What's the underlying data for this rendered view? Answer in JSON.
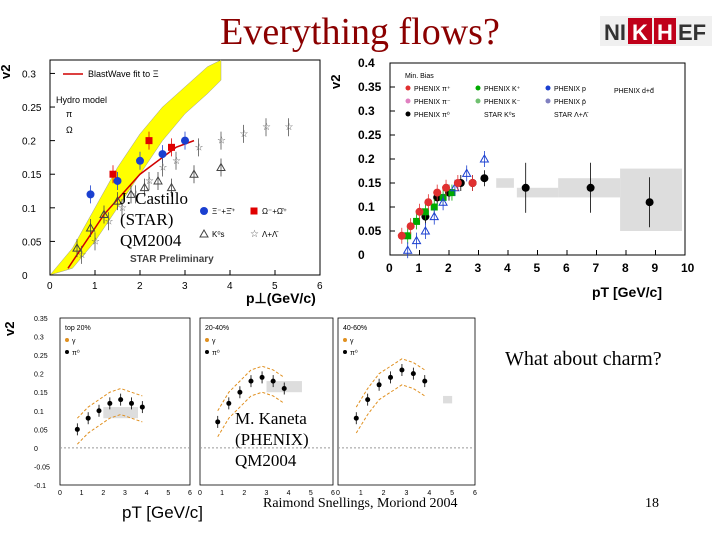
{
  "slide": {
    "title": "Everything flows?",
    "logo_text": {
      "part1": "NI",
      "part2": "K",
      "part3": "H",
      "part4": "EF"
    },
    "question": "What about charm?",
    "footer": "Raimond Snellings, Moriond 2004",
    "page_number": "18",
    "credit_star": [
      "J. Castillo",
      "(STAR)",
      "QM2004"
    ],
    "credit_phenix": [
      "M. Kaneta",
      "(PHENIX)",
      "QM2004"
    ]
  },
  "colors": {
    "title": "#8b0000",
    "hydro_band": "#ffff00",
    "blastwave": "#d00000",
    "phenix_green": "#00aa00",
    "phenix_pi0": "#000000",
    "gamma": "#e09020"
  },
  "chart_data": [
    {
      "type": "scatter",
      "panel": "STAR",
      "ylabel": "v2",
      "xlabel": "p⊥(GeV/c)",
      "xlim": [
        0,
        6
      ],
      "ylim": [
        0,
        0.32
      ],
      "x_ticks": [
        "0",
        "1",
        "2",
        "3",
        "4",
        "5",
        "6"
      ],
      "y_ticks": [
        "0",
        "0.05",
        "0.1",
        "0.15",
        "0.2",
        "0.25",
        "0.3"
      ],
      "legend": [
        "BlastWave fit to Ξ",
        "Hydro model",
        "π",
        "Ω",
        "Ξ⁻+Ξ̄⁺",
        "Ω⁻+Ω̄⁺",
        "K⁰s",
        "Λ+Λ̄"
      ],
      "annotation": "STAR Preliminary",
      "series": [
        {
          "name": "Ξ⁻+Ξ̄⁺",
          "x": [
            0.9,
            1.5,
            2.0,
            2.5,
            3.0
          ],
          "y": [
            0.12,
            0.14,
            0.17,
            0.18,
            0.2
          ]
        },
        {
          "name": "Ω⁻+Ω̄⁺",
          "x": [
            1.4,
            2.2,
            2.7
          ],
          "y": [
            0.15,
            0.2,
            0.19
          ]
        },
        {
          "name": "K⁰s",
          "x": [
            0.6,
            0.9,
            1.2,
            1.5,
            1.8,
            2.1,
            2.4,
            2.7,
            3.2,
            3.8
          ],
          "y": [
            0.04,
            0.07,
            0.09,
            0.11,
            0.12,
            0.13,
            0.14,
            0.13,
            0.15,
            0.16
          ]
        },
        {
          "name": "Λ+Λ̄",
          "x": [
            0.7,
            1.0,
            1.3,
            1.6,
            1.9,
            2.2,
            2.5,
            2.8,
            3.3,
            3.8,
            4.3,
            4.8,
            5.3
          ],
          "y": [
            0.03,
            0.05,
            0.08,
            0.1,
            0.12,
            0.14,
            0.16,
            0.17,
            0.19,
            0.2,
            0.21,
            0.22,
            0.22
          ]
        }
      ],
      "blastwave_fit": {
        "x": [
          0.4,
          0.8,
          1.2,
          1.6,
          2.0,
          2.4,
          2.8,
          3.2
        ],
        "y": [
          0.01,
          0.05,
          0.09,
          0.12,
          0.15,
          0.17,
          0.19,
          0.2
        ]
      },
      "hydro_band": {
        "x": [
          0,
          0.5,
          1.0,
          1.5,
          2.0,
          2.5,
          3.0,
          3.5,
          3.8
        ],
        "y_low": [
          0,
          0.01,
          0.05,
          0.1,
          0.15,
          0.2,
          0.24,
          0.27,
          0.29
        ],
        "y_high": [
          0,
          0.04,
          0.1,
          0.16,
          0.21,
          0.25,
          0.28,
          0.31,
          0.32
        ]
      }
    },
    {
      "type": "scatter",
      "panel": "PHENIX",
      "ylabel": "v2",
      "xlabel": "pT [GeV/c]",
      "xlim": [
        0,
        10
      ],
      "ylim": [
        0,
        0.4
      ],
      "x_ticks": [
        "0",
        "1",
        "2",
        "3",
        "4",
        "5",
        "6",
        "7",
        "8",
        "9",
        "10"
      ],
      "y_ticks": [
        "0",
        "0.05",
        "0.1",
        "0.15",
        "0.2",
        "0.25",
        "0.3",
        "0.35",
        "0.4"
      ],
      "legend_header": "Min. Bias",
      "legend": [
        "PHENIX π⁺",
        "PHENIX K⁺",
        "PHENIX p",
        "PHENIX d+d̄",
        "PHENIX π⁻",
        "PHENIX K⁻",
        "PHENIX p̄",
        "PHENIX π⁰",
        "STAR K⁰s",
        "STAR Λ+Λ̄"
      ],
      "series": [
        {
          "name": "PHENIX π⁰",
          "x": [
            1.2,
            1.6,
            2.0,
            2.4,
            2.8,
            3.2,
            4.6,
            6.8,
            8.8
          ],
          "y": [
            0.08,
            0.12,
            0.13,
            0.15,
            0.15,
            0.16,
            0.14,
            0.14,
            0.11
          ]
        },
        {
          "name": "PHENIX K⁺",
          "x": [
            0.6,
            0.9,
            1.2,
            1.5,
            1.8,
            2.1
          ],
          "y": [
            0.04,
            0.07,
            0.09,
            0.1,
            0.12,
            0.13
          ]
        },
        {
          "name": "PHENIX p",
          "x": [
            0.6,
            0.9,
            1.2,
            1.5,
            1.8,
            2.2,
            2.6,
            3.2
          ],
          "y": [
            0.01,
            0.03,
            0.05,
            0.08,
            0.11,
            0.14,
            0.17,
            0.2
          ]
        },
        {
          "name": "PHENIX π⁺",
          "x": [
            0.4,
            0.7,
            1.0,
            1.3,
            1.6,
            1.9,
            2.3,
            2.8
          ],
          "y": [
            0.04,
            0.06,
            0.09,
            0.11,
            0.13,
            0.14,
            0.15,
            0.15
          ]
        }
      ],
      "sys_boxes": [
        {
          "x": [
            3.6,
            4.2
          ],
          "y": [
            0.14,
            0.16
          ]
        },
        {
          "x": [
            4.3,
            5.7
          ],
          "y": [
            0.12,
            0.14
          ]
        },
        {
          "x": [
            5.7,
            7.8
          ],
          "y": [
            0.12,
            0.16
          ]
        },
        {
          "x": [
            7.8,
            9.9
          ],
          "y": [
            0.05,
            0.18
          ]
        }
      ]
    },
    {
      "type": "line",
      "panel": "PHENIX centrality",
      "ylabel": "v2",
      "xlabel": "pT [GeV/c]",
      "ylim": [
        -0.1,
        0.35
      ],
      "y_ticks": [
        "-0.1",
        "-0.05",
        "0",
        "0.05",
        "0.1",
        "0.15",
        "0.2",
        "0.25",
        "0.3",
        "0.35"
      ],
      "x_ticks": [
        "0",
        "1",
        "2",
        "3",
        "4",
        "5",
        "6"
      ],
      "subpanels": [
        {
          "label": "top 20%",
          "legend": [
            "γ",
            "π⁰"
          ],
          "x": [
            0.8,
            1.3,
            1.8,
            2.3,
            2.8,
            3.3,
            3.8
          ],
          "y": [
            0.05,
            0.08,
            0.1,
            0.12,
            0.13,
            0.12,
            0.11
          ]
        },
        {
          "label": "20-40%",
          "legend": [
            "γ",
            "π⁰"
          ],
          "x": [
            0.8,
            1.3,
            1.8,
            2.3,
            2.8,
            3.3,
            3.8
          ],
          "y": [
            0.07,
            0.12,
            0.15,
            0.18,
            0.19,
            0.18,
            0.16
          ]
        },
        {
          "label": "40-60%",
          "legend": [
            "γ",
            "π⁰"
          ],
          "x": [
            0.8,
            1.3,
            1.8,
            2.3,
            2.8,
            3.3,
            3.8
          ],
          "y": [
            0.08,
            0.13,
            0.17,
            0.19,
            0.21,
            0.2,
            0.18
          ]
        }
      ]
    }
  ]
}
